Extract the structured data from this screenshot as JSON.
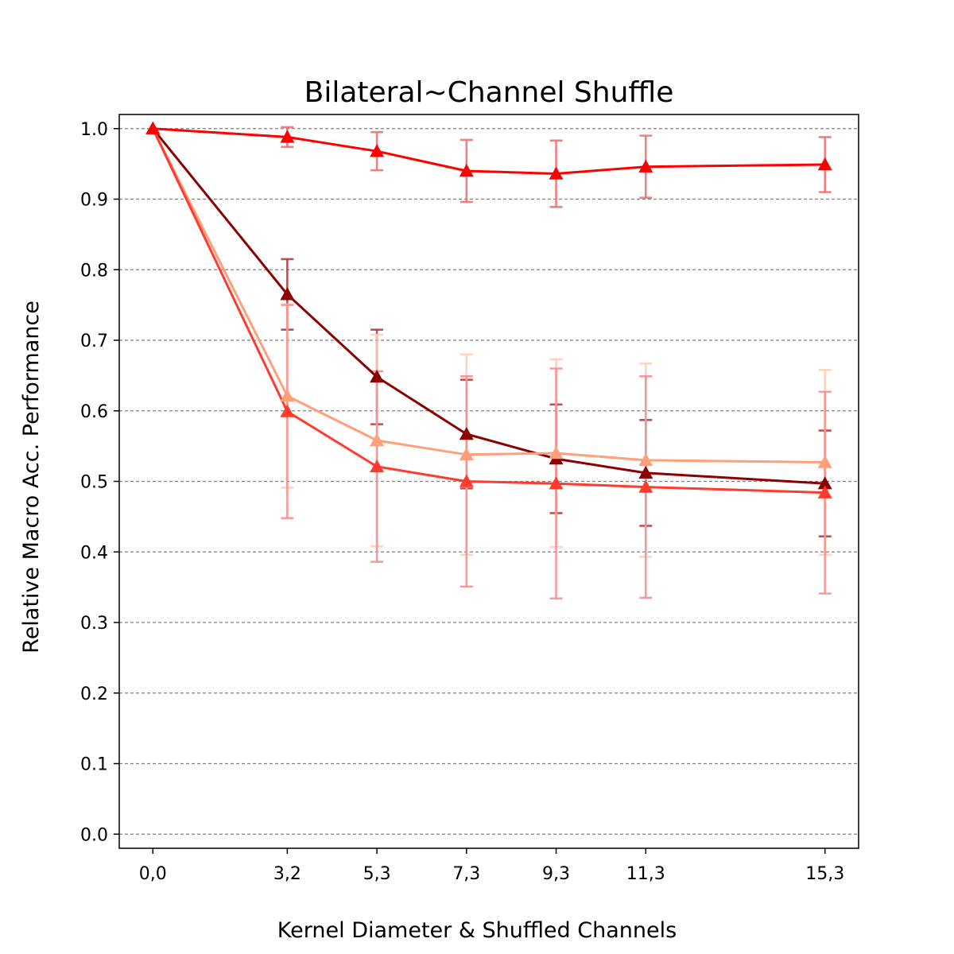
{
  "chart_data": {
    "type": "line",
    "title": "Bilateral~Channel Shuffle",
    "xlabel": "Kernel Diameter & Shuffled Channels",
    "ylabel": "Relative Macro Acc. Performance",
    "x_tick_labels": [
      "0,0",
      "3,2",
      "5,3",
      "7,3",
      "9,3",
      "11,3",
      "15,3"
    ],
    "x_values": [
      0,
      3,
      5,
      7,
      9,
      11,
      15
    ],
    "xlim": [
      -0.75,
      15.75
    ],
    "ylim": [
      -0.02,
      1.02
    ],
    "y_ticks": [
      0.0,
      0.1,
      0.2,
      0.3,
      0.4,
      0.5,
      0.6,
      0.7,
      0.8,
      0.9,
      1.0
    ],
    "y_tick_labels": [
      "0.0",
      "0.1",
      "0.2",
      "0.3",
      "0.4",
      "0.5",
      "0.6",
      "0.7",
      "0.8",
      "0.9",
      "1.0"
    ],
    "grid": "horizontal dashed",
    "marker": "triangle",
    "series": [
      {
        "color": "#8b0000",
        "errcolor": "#a33a3a",
        "values": [
          1.0,
          0.765,
          0.648,
          0.567,
          0.532,
          0.512,
          0.497
        ],
        "errors": [
          0.0,
          0.05,
          0.067,
          0.077,
          0.077,
          0.075,
          0.075
        ]
      },
      {
        "color": "#ffa07a",
        "errcolor": "#ffcbb5",
        "values": [
          1.0,
          0.621,
          0.558,
          0.538,
          0.54,
          0.53,
          0.527
        ],
        "errors": [
          0.0,
          0.13,
          0.15,
          0.142,
          0.133,
          0.137,
          0.131
        ]
      },
      {
        "color": "#ff3b30",
        "errcolor": "#f58c8c",
        "values": [
          1.0,
          0.599,
          0.521,
          0.5,
          0.497,
          0.492,
          0.484
        ],
        "errors": [
          0.0,
          0.151,
          0.135,
          0.149,
          0.163,
          0.157,
          0.143
        ]
      },
      {
        "color": "#ff0000",
        "errcolor": "#f06a6a",
        "values": [
          1.0,
          0.988,
          0.968,
          0.94,
          0.936,
          0.946,
          0.949
        ],
        "errors": [
          0.0,
          0.014,
          0.027,
          0.044,
          0.047,
          0.044,
          0.039
        ]
      }
    ]
  }
}
